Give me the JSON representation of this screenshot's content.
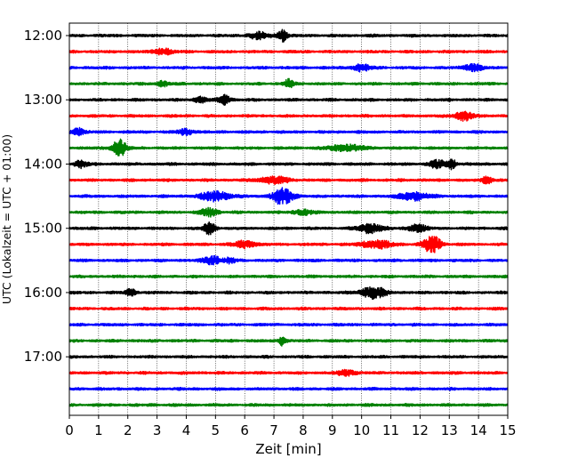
{
  "chart_data": {
    "type": "line",
    "title": "",
    "xlabel": "Zeit  [min]",
    "ylabel": "UTC (Lokalzeit = UTC + 01:00)",
    "xlim": [
      0,
      15
    ],
    "x_ticks": [
      "0",
      "1",
      "2",
      "3",
      "4",
      "5",
      "6",
      "7",
      "8",
      "9",
      "10",
      "11",
      "12",
      "13",
      "14",
      "15"
    ],
    "y_ticks": [
      {
        "label": "12:00",
        "trace_index": 0
      },
      {
        "label": "13:00",
        "trace_index": 4
      },
      {
        "label": "14:00",
        "trace_index": 8
      },
      {
        "label": "15:00",
        "trace_index": 12
      },
      {
        "label": "16:00",
        "trace_index": 16
      },
      {
        "label": "17:00",
        "trace_index": 20
      }
    ],
    "grid": "vertical-dotted",
    "trace_interval_min": 15,
    "trace_colors": [
      "#000000",
      "#ff0000",
      "#0000ff",
      "#008000"
    ],
    "series": [
      {
        "start": "12:00",
        "color": "#000000",
        "events": [
          {
            "t": 7.3,
            "amp": 1.7,
            "w": 0.15
          },
          {
            "t": 6.5,
            "amp": 0.8,
            "w": 0.4
          }
        ]
      },
      {
        "start": "12:15",
        "color": "#ff0000",
        "events": [
          {
            "t": 3.2,
            "amp": 0.9,
            "w": 0.3
          }
        ]
      },
      {
        "start": "12:30",
        "color": "#0000ff",
        "events": [
          {
            "t": 10.0,
            "amp": 0.9,
            "w": 0.3
          },
          {
            "t": 13.8,
            "amp": 0.9,
            "w": 0.3
          }
        ]
      },
      {
        "start": "12:45",
        "color": "#008000",
        "events": [
          {
            "t": 7.5,
            "amp": 1.2,
            "w": 0.15
          },
          {
            "t": 3.2,
            "amp": 0.7,
            "w": 0.2
          }
        ]
      },
      {
        "start": "13:00",
        "color": "#000000",
        "events": [
          {
            "t": 5.3,
            "amp": 1.2,
            "w": 0.2
          },
          {
            "t": 4.5,
            "amp": 0.9,
            "w": 0.2
          }
        ]
      },
      {
        "start": "13:15",
        "color": "#ff0000",
        "events": [
          {
            "t": 13.5,
            "amp": 1.2,
            "w": 0.3
          }
        ]
      },
      {
        "start": "13:30",
        "color": "#0000ff",
        "events": [
          {
            "t": 0.3,
            "amp": 1.0,
            "w": 0.2
          },
          {
            "t": 4.0,
            "amp": 0.7,
            "w": 0.3
          }
        ]
      },
      {
        "start": "13:45",
        "color": "#008000",
        "events": [
          {
            "t": 1.7,
            "amp": 2.2,
            "w": 0.25
          },
          {
            "t": 9.5,
            "amp": 0.8,
            "w": 0.6
          }
        ]
      },
      {
        "start": "14:00",
        "color": "#000000",
        "events": [
          {
            "t": 13.1,
            "amp": 1.3,
            "w": 0.15
          },
          {
            "t": 12.6,
            "amp": 1.0,
            "w": 0.3
          },
          {
            "t": 0.4,
            "amp": 1.0,
            "w": 0.2
          }
        ]
      },
      {
        "start": "14:15",
        "color": "#ff0000",
        "events": [
          {
            "t": 14.3,
            "amp": 1.3,
            "w": 0.15
          },
          {
            "t": 7.0,
            "amp": 0.9,
            "w": 0.5
          }
        ]
      },
      {
        "start": "14:30",
        "color": "#0000ff",
        "events": [
          {
            "t": 7.3,
            "amp": 2.2,
            "w": 0.35
          },
          {
            "t": 5.0,
            "amp": 1.3,
            "w": 0.5
          },
          {
            "t": 11.8,
            "amp": 1.1,
            "w": 0.5
          }
        ]
      },
      {
        "start": "14:45",
        "color": "#008000",
        "events": [
          {
            "t": 4.8,
            "amp": 1.0,
            "w": 0.3
          },
          {
            "t": 8.0,
            "amp": 0.7,
            "w": 0.3
          }
        ]
      },
      {
        "start": "15:00",
        "color": "#000000",
        "events": [
          {
            "t": 4.8,
            "amp": 1.6,
            "w": 0.2
          },
          {
            "t": 10.3,
            "amp": 1.2,
            "w": 0.4
          },
          {
            "t": 11.9,
            "amp": 1.0,
            "w": 0.3
          }
        ]
      },
      {
        "start": "15:15",
        "color": "#ff0000",
        "events": [
          {
            "t": 12.4,
            "amp": 2.3,
            "w": 0.3
          },
          {
            "t": 10.5,
            "amp": 1.1,
            "w": 0.5
          },
          {
            "t": 6.0,
            "amp": 0.8,
            "w": 0.4
          }
        ]
      },
      {
        "start": "15:30",
        "color": "#0000ff",
        "events": [
          {
            "t": 4.9,
            "amp": 1.1,
            "w": 0.3
          },
          {
            "t": 5.5,
            "amp": 0.8,
            "w": 0.15
          }
        ]
      },
      {
        "start": "15:45",
        "color": "#008000",
        "events": []
      },
      {
        "start": "16:00",
        "color": "#000000",
        "events": [
          {
            "t": 10.4,
            "amp": 1.6,
            "w": 0.4
          },
          {
            "t": 2.1,
            "amp": 0.8,
            "w": 0.2
          }
        ]
      },
      {
        "start": "16:15",
        "color": "#ff0000",
        "events": []
      },
      {
        "start": "16:30",
        "color": "#0000ff",
        "events": []
      },
      {
        "start": "16:45",
        "color": "#008000",
        "events": [
          {
            "t": 7.3,
            "amp": 1.4,
            "w": 0.12
          }
        ]
      },
      {
        "start": "17:00",
        "color": "#000000",
        "events": []
      },
      {
        "start": "17:15",
        "color": "#ff0000",
        "events": [
          {
            "t": 9.5,
            "amp": 0.7,
            "w": 0.3
          }
        ]
      },
      {
        "start": "17:30",
        "color": "#0000ff",
        "events": []
      },
      {
        "start": "17:45",
        "color": "#008000",
        "events": []
      }
    ]
  }
}
